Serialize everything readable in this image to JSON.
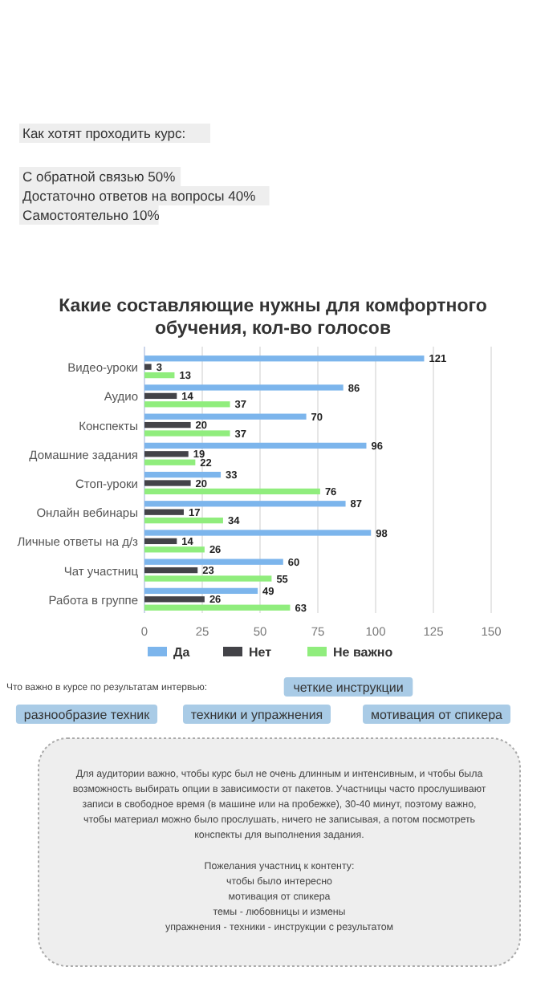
{
  "chart_data": {
    "type": "bar",
    "orientation": "horizontal",
    "title": "Какие составляющие нужны для комфортного обучения, кол-во голосов",
    "categories": [
      "Видео-уроки",
      "Аудио",
      "Конспекты",
      "Домашние задания",
      "Стоп-уроки",
      "Онлайн вебинары",
      "Личные ответы на д/з",
      "Чат участниц",
      "Работа в группе"
    ],
    "series": [
      {
        "name": "Да",
        "color": "#7cb5ec",
        "values": [
          121,
          86,
          70,
          96,
          33,
          87,
          98,
          60,
          49
        ]
      },
      {
        "name": "Нет",
        "color": "#434348",
        "values": [
          3,
          14,
          20,
          19,
          20,
          17,
          14,
          23,
          26
        ]
      },
      {
        "name": "Не важно",
        "color": "#90ed7d",
        "values": [
          13,
          37,
          37,
          22,
          76,
          34,
          26,
          55,
          63
        ]
      }
    ],
    "xlim": [
      0,
      150
    ],
    "xticks": [
      0,
      25,
      50,
      75,
      100,
      125,
      150
    ],
    "grid": "x",
    "legend": "bottom",
    "data_labels": true,
    "annotations": [
      "Как хотят проходить курс:",
      "С обратной связью 50%",
      "Достаточно ответов на вопросы 40%",
      "Самостоятельно 10%",
      "Что важно в курсе по результатам интервью:",
      "четкие инструкции",
      "разнообразие техник",
      "техники и упражнения",
      "мотивация от спикера",
      "Для аудитории важно, чтобы курс был не очень длинным и интенсивным, и чтобы была возможность выбирать опции в зависимости от пакетов. Участницы часто прослушивают записи в свободное время (в машине или на пробежке), 30-40 минут,  поэтому важно, чтобы материал можно было прослушать, ничего не записывая, а потом посмотреть конспекты для выполнения задания.",
      "Пожелания участниц к контенту:",
      "чтобы было интересно",
      "мотивация от спикера",
      "темы - любовницы и измены",
      "упражнения - техники - инструкции с результатом"
    ]
  }
}
